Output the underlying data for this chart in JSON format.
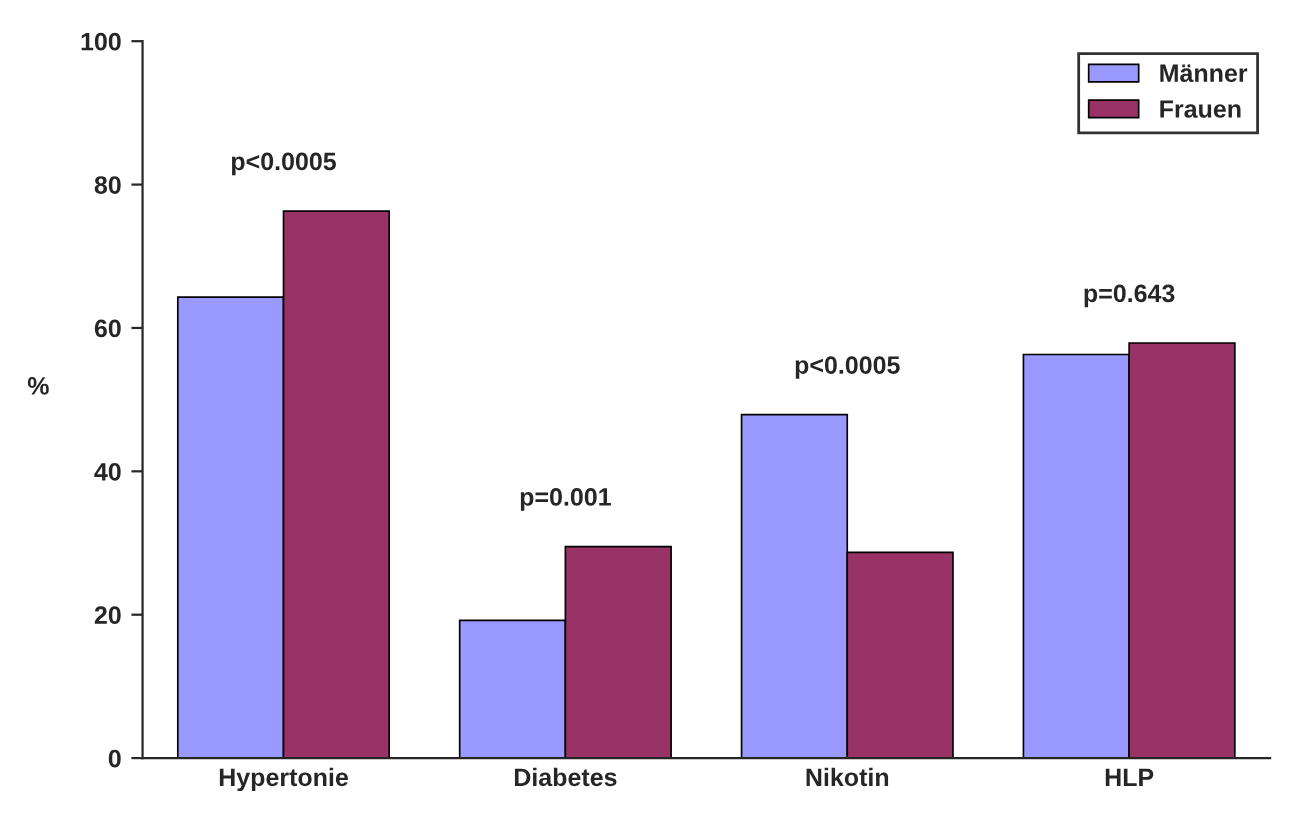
{
  "chart_data": {
    "type": "bar",
    "ylabel": "%",
    "categories": [
      "Hypertonie",
      "Diabetes",
      "Nikotin",
      "HLP"
    ],
    "series": [
      {
        "name": "Männer",
        "color": "#9999ff",
        "values": [
          64.3,
          19.2,
          47.9,
          56.3
        ]
      },
      {
        "name": "Frauen",
        "color": "#993366",
        "values": [
          76.3,
          29.5,
          28.7,
          57.9
        ]
      }
    ],
    "ylim": [
      0,
      100
    ],
    "yticks": [
      0,
      20,
      40,
      60,
      80,
      100
    ],
    "grid": false,
    "legend": "top right",
    "annotations": [
      "p<0.0005",
      "p=0.001",
      "p<0.0005",
      "p=0.643"
    ]
  }
}
